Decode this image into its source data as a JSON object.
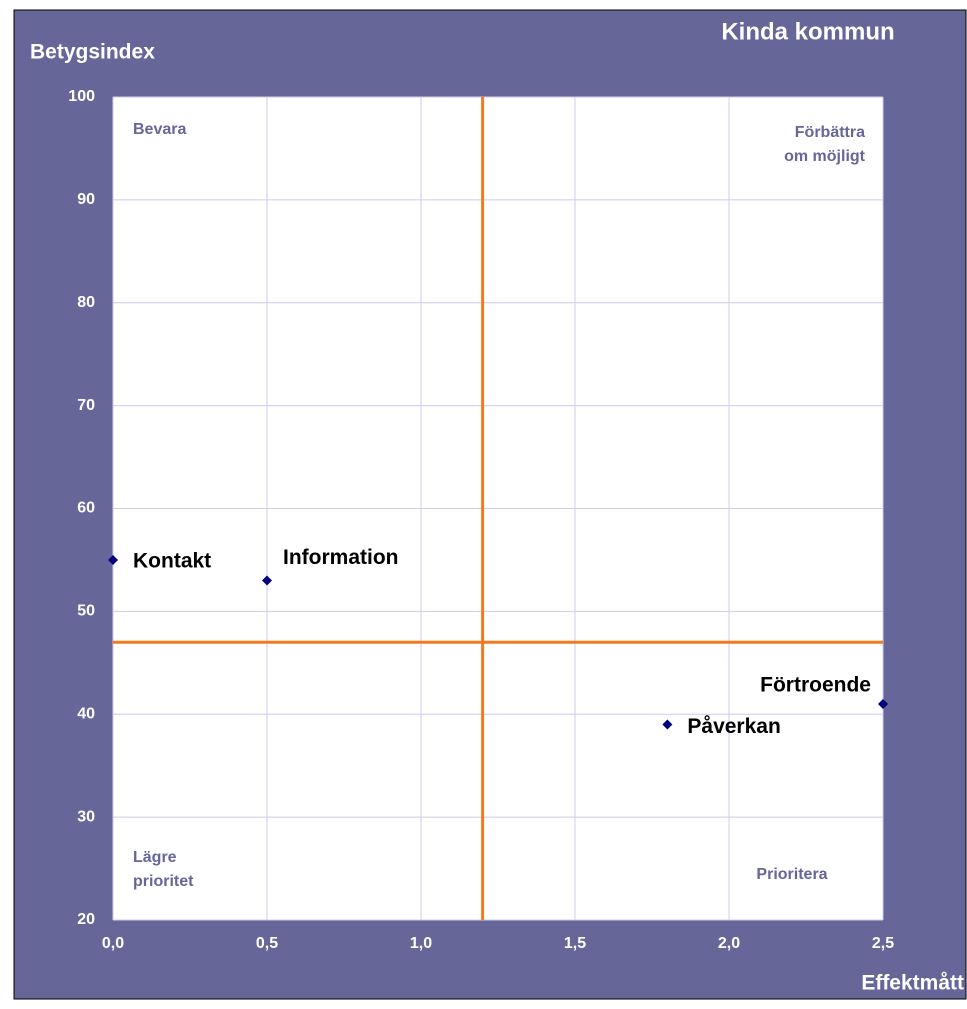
{
  "chart_data": {
    "type": "scatter",
    "title": "Kinda kommun",
    "y_label": "Betygsindex",
    "x_label": "Effektmått",
    "x": [
      0,
      0.5,
      2.5,
      1.8
    ],
    "values": [
      55,
      53,
      41,
      39
    ],
    "point_labels": [
      "Kontakt",
      "Information",
      "Förtroende",
      "Påverkan"
    ],
    "color": "#000080",
    "xlim": [
      0,
      2.5
    ],
    "xticks": [
      {
        "value": 0,
        "label": "0,0"
      },
      {
        "value": 0.5,
        "label": "0,5"
      },
      {
        "value": 1,
        "label": "1,0"
      },
      {
        "value": 1.5,
        "label": "1,5"
      },
      {
        "value": 2,
        "label": "2,0"
      },
      {
        "value": 2.5,
        "label": "2,5"
      }
    ],
    "ylim": [
      20,
      100
    ],
    "yticks": [
      20,
      30,
      40,
      50,
      60,
      70,
      80,
      90,
      100
    ],
    "grid": true,
    "reference_lines": {
      "x": 1.2,
      "y": 47,
      "color": "#f57a1f"
    },
    "quadrant_labels": {
      "top_left": [
        "Bevara"
      ],
      "top_right": [
        "Förbättra",
        "om möjligt"
      ],
      "bottom_left": [
        "Lägre",
        "prioritet"
      ],
      "bottom_right": [
        "Prioritera"
      ]
    }
  }
}
